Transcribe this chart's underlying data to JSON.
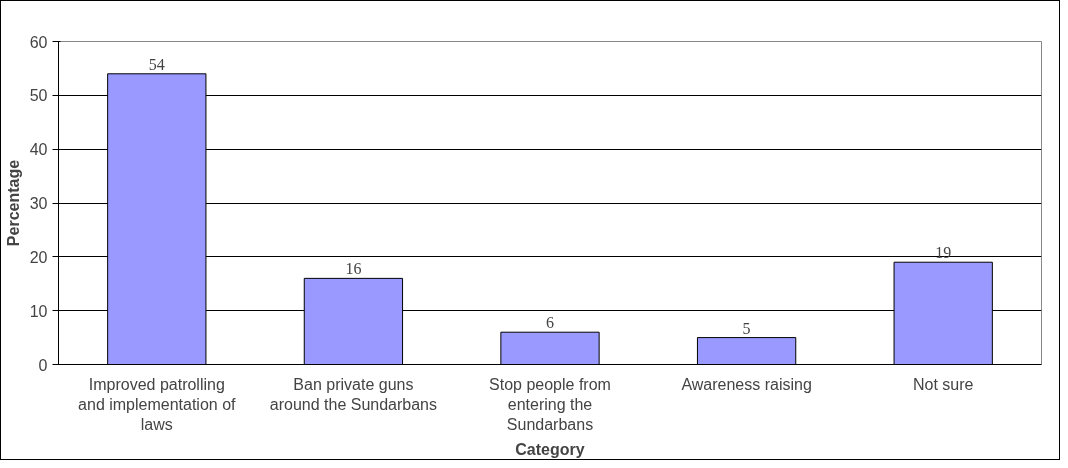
{
  "chart_data": {
    "type": "bar",
    "xlabel": "Category",
    "ylabel": "Percentage",
    "categories": [
      "Improved patrolling and implementation of laws",
      "Ban private guns around the Sundarbans",
      "Stop people from entering the Sundarbans",
      "Awareness raising",
      "Not sure"
    ],
    "values": [
      54,
      16,
      6,
      5,
      19
    ],
    "color": "#9999ff",
    "ylim": [
      0,
      60
    ],
    "yticks": [
      0,
      10,
      20,
      30,
      40,
      50,
      60
    ],
    "grid": "y",
    "data_labels": true
  }
}
